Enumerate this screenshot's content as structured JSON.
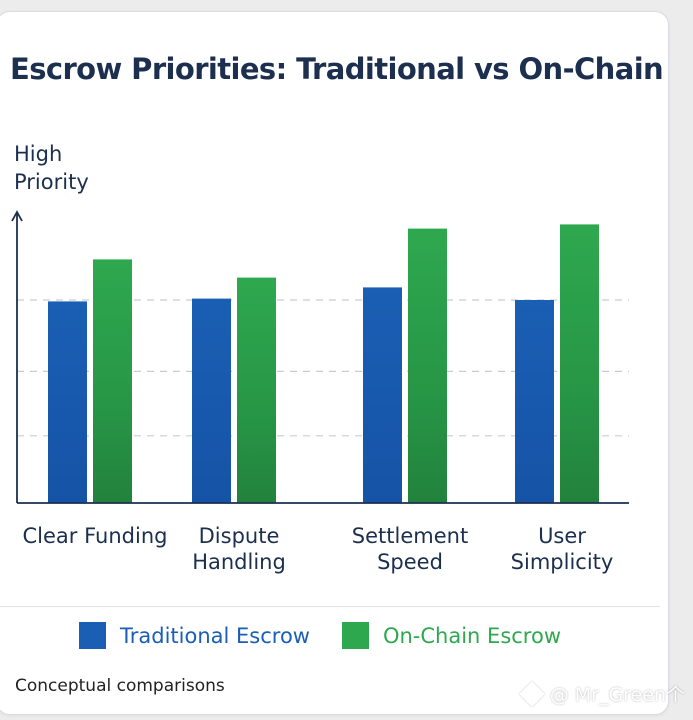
{
  "chart_data": {
    "type": "bar",
    "title": "Escrow Priorities: Traditional vs On-Chain",
    "ylabel": "High\nPriority",
    "categories": [
      "Clear Funding",
      "Dispute\nHandling",
      "Settlement\nSpeed",
      "User\nSimplicity"
    ],
    "series": [
      {
        "name": "Traditional Escrow",
        "color": "#1a5fb4",
        "values": [
          7.2,
          7.3,
          7.7,
          7.25
        ]
      },
      {
        "name": "On-Chain Escrow",
        "color": "#2ea84f",
        "values": [
          8.7,
          8.05,
          9.8,
          9.95
        ]
      }
    ],
    "ylim": [
      0,
      10
    ],
    "grid": "horizontal dashed",
    "legend": "bottom",
    "y_ticks_shown": false
  },
  "caption": "Conceptual comparisons",
  "watermark": "@ Mr_Green个"
}
